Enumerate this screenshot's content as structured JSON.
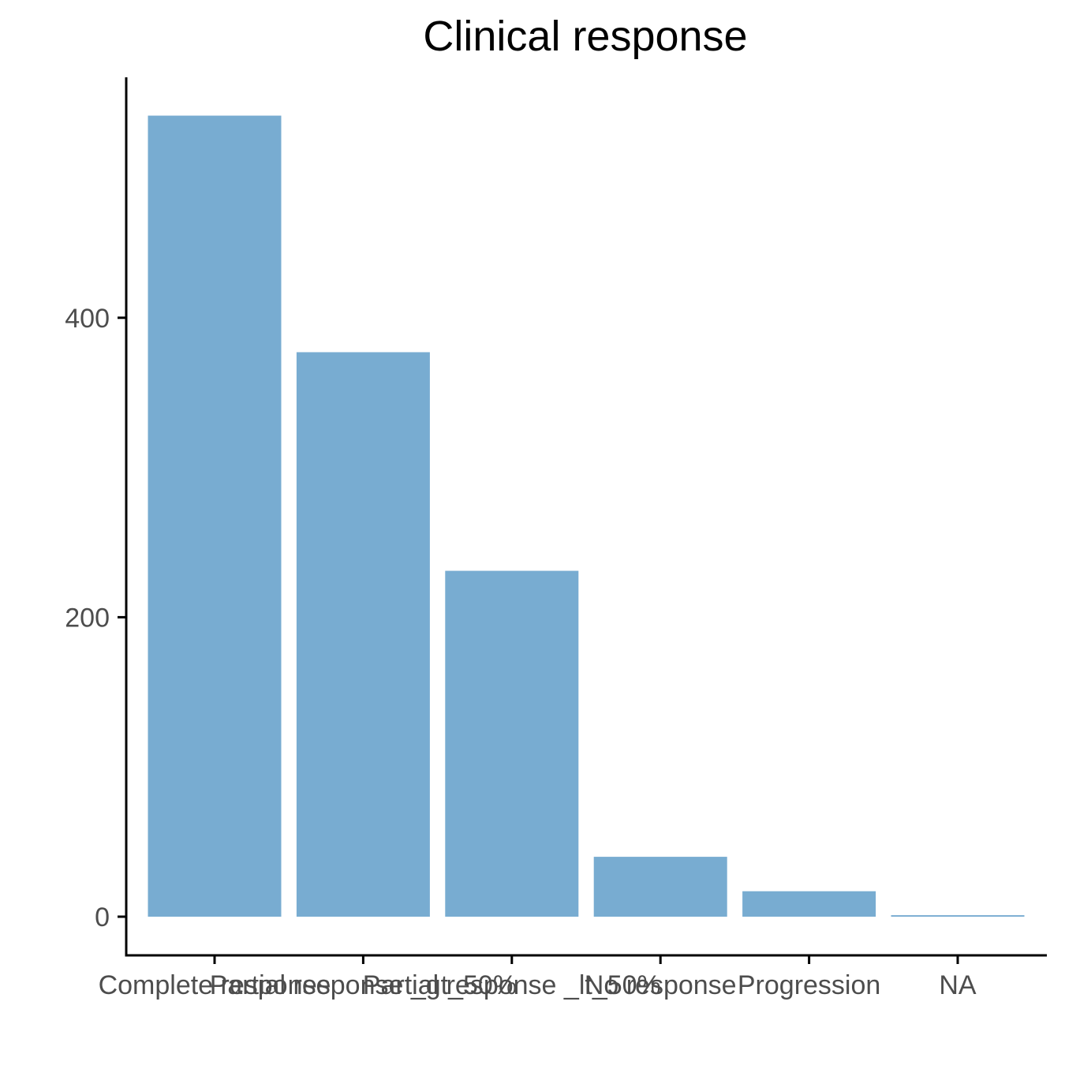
{
  "chart_data": {
    "type": "bar",
    "title": "Clinical response",
    "xlabel": "",
    "ylabel": "",
    "categories": [
      "Complete response",
      "Partial response _gt_50%",
      "Partial response _lt_50%",
      "No response",
      "Progression",
      "NA"
    ],
    "values": [
      535,
      377,
      231,
      40,
      17,
      1
    ],
    "yticks": [
      0,
      200,
      400
    ],
    "ylim": [
      0,
      560
    ],
    "bar_color": "#78acd1",
    "grid": false,
    "legend": "none"
  }
}
